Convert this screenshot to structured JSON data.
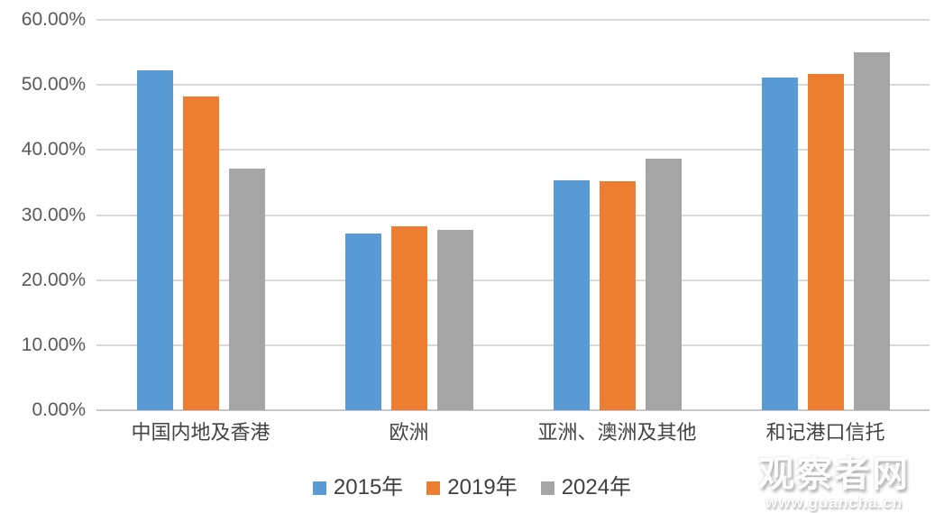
{
  "chart_data": {
    "type": "bar",
    "categories": [
      "中国内地及香港",
      "欧洲",
      "亚洲、澳洲及其他",
      "和记港口信托"
    ],
    "series": [
      {
        "name": "2015年",
        "color": "#5B9BD5",
        "values": [
          52.3,
          27.1,
          35.3,
          51.1
        ]
      },
      {
        "name": "2019年",
        "color": "#ED7D31",
        "values": [
          48.2,
          28.2,
          35.2,
          51.7
        ]
      },
      {
        "name": "2024年",
        "color": "#A5A5A5",
        "values": [
          37.2,
          27.7,
          38.6,
          55.0
        ]
      }
    ],
    "title": "",
    "xlabel": "",
    "ylabel": "",
    "ylim": [
      0,
      60
    ],
    "ytick_step": 10,
    "ytick_labels": [
      "0.00%",
      "10.00%",
      "20.00%",
      "30.00%",
      "40.00%",
      "50.00%",
      "60.00%"
    ],
    "grid": true,
    "legend_position": "bottom"
  },
  "colors": {
    "background": "#FFFFFF",
    "gridline": "#D9D9D9",
    "axis_line": "#C6C6C6",
    "tick_label": "#595959",
    "category_label": "#444444",
    "legend_label": "#404040"
  },
  "watermark": {
    "brand": "观察者网",
    "url": "www.guancha.cn"
  }
}
